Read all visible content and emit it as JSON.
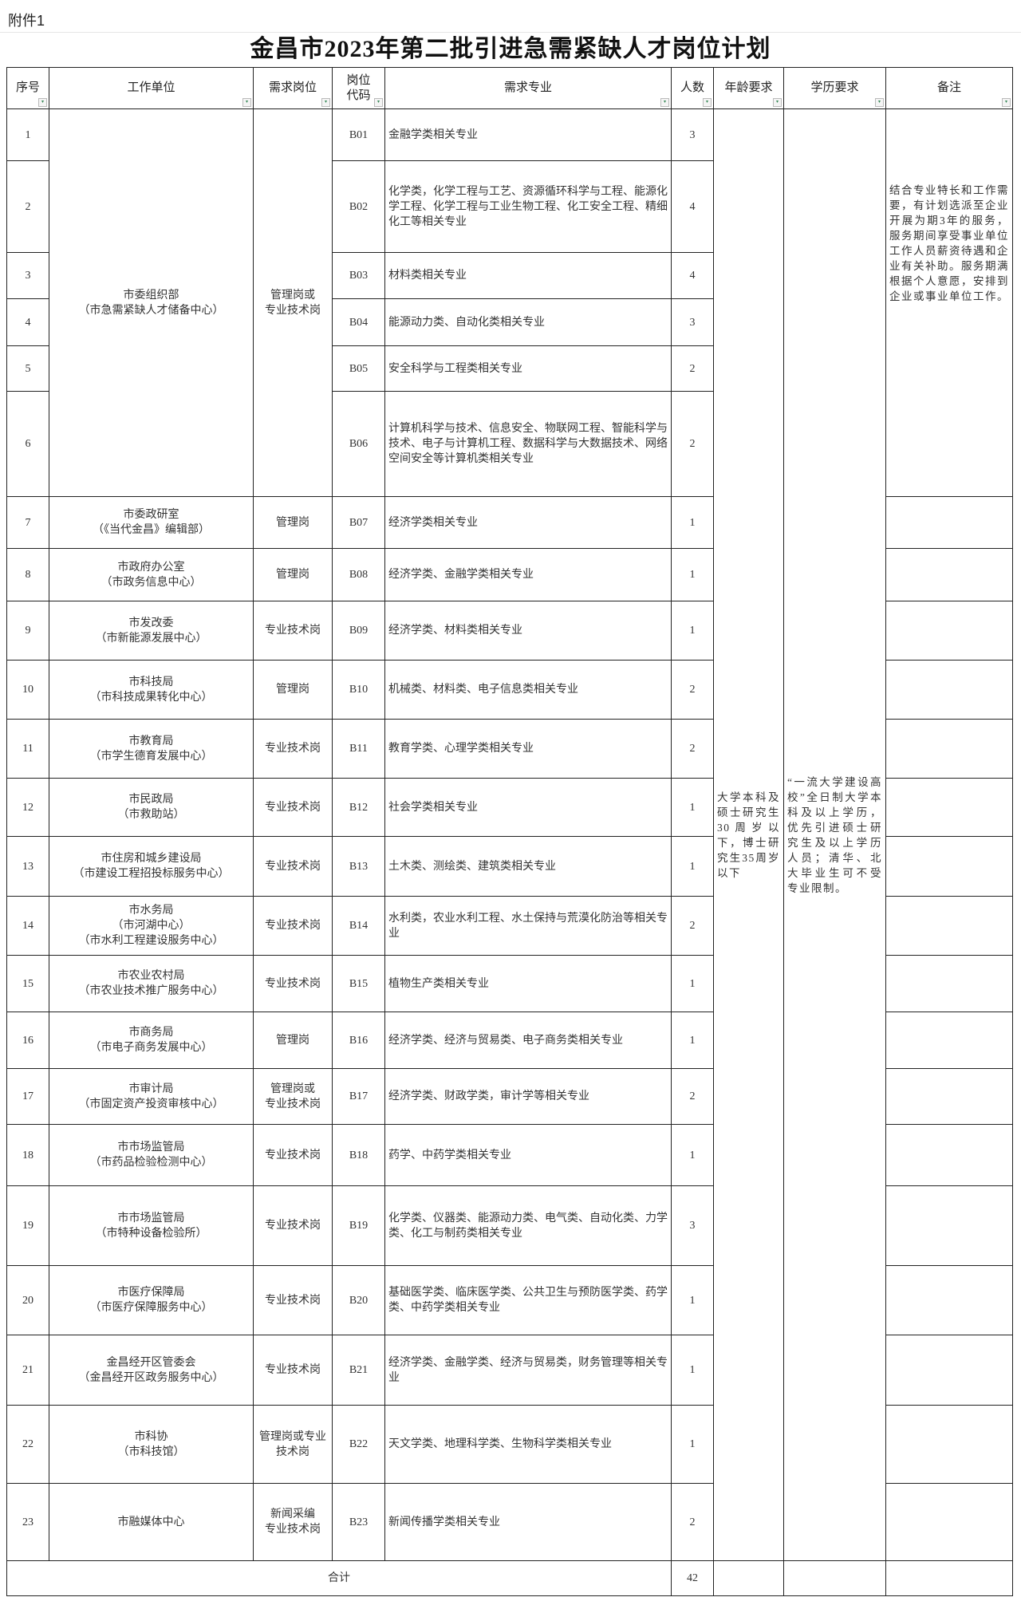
{
  "attachment_label": "附件1",
  "title": "金昌市2023年第二批引进急需紧缺人才岗位计划",
  "headers": [
    "序号",
    "工作单位",
    "需求岗位",
    "岗位\n代码",
    "需求专业",
    "人数",
    "年龄要求",
    "学历要求",
    "备注"
  ],
  "filter_icon": "dropdown-filter-arrow",
  "age_requirement": "大学本科及硕士研究生30周岁以下，博士研究生35周岁以下",
  "education_requirement": "“一流大学建设高校”全日制大学本科及以上学历，优先引进硕士研究生及以上学历人员；清华、北大毕业生可不受专业限制。",
  "remark_group1": "结合专业特长和工作需要，有计划选派至企业开展为期3年的服务，服务期间享受事业单位工作人员薪资待遇和企业有关补助。服务期满根据个人意愿，安排到企业或事业单位工作。",
  "rows": [
    {
      "no": "1",
      "unit": "市委组织部\n（市急需紧缺人才储备中心）",
      "position": "管理岗或\n专业技术岗",
      "code": "B01",
      "major": "金融学类相关专业",
      "count": "3"
    },
    {
      "no": "2",
      "code": "B02",
      "major": "化学类，化学工程与工艺、资源循环科学与工程、能源化学工程、化学工程与工业生物工程、化工安全工程、精细化工等相关专业",
      "count": "4"
    },
    {
      "no": "3",
      "code": "B03",
      "major": "材料类相关专业",
      "count": "4"
    },
    {
      "no": "4",
      "code": "B04",
      "major": "能源动力类、自动化类相关专业",
      "count": "3"
    },
    {
      "no": "5",
      "code": "B05",
      "major": "安全科学与工程类相关专业",
      "count": "2"
    },
    {
      "no": "6",
      "code": "B06",
      "major": "计算机科学与技术、信息安全、物联网工程、智能科学与技术、电子与计算机工程、数据科学与大数据技术、网络空间安全等计算机类相关专业",
      "count": "2"
    },
    {
      "no": "7",
      "unit": "市委政研室\n（《当代金昌》编辑部）",
      "position": "管理岗",
      "code": "B07",
      "major": "经济学类相关专业",
      "count": "1"
    },
    {
      "no": "8",
      "unit": "市政府办公室\n（市政务信息中心）",
      "position": "管理岗",
      "code": "B08",
      "major": "经济学类、金融学类相关专业",
      "count": "1"
    },
    {
      "no": "9",
      "unit": "市发改委\n（市新能源发展中心）",
      "position": "专业技术岗",
      "code": "B09",
      "major": "经济学类、材料类相关专业",
      "count": "1"
    },
    {
      "no": "10",
      "unit": "市科技局\n（市科技成果转化中心）",
      "position": "管理岗",
      "code": "B10",
      "major": "机械类、材料类、电子信息类相关专业",
      "count": "2"
    },
    {
      "no": "11",
      "unit": "市教育局\n（市学生德育发展中心）",
      "position": "专业技术岗",
      "code": "B11",
      "major": "教育学类、心理学类相关专业",
      "count": "2"
    },
    {
      "no": "12",
      "unit": "市民政局\n（市救助站）",
      "position": "专业技术岗",
      "code": "B12",
      "major": "社会学类相关专业",
      "count": "1"
    },
    {
      "no": "13",
      "unit": "市住房和城乡建设局\n（市建设工程招投标服务中心）",
      "position": "专业技术岗",
      "code": "B13",
      "major": "土木类、测绘类、建筑类相关专业",
      "count": "1"
    },
    {
      "no": "14",
      "unit": "市水务局\n（市河湖中心）\n（市水利工程建设服务中心）",
      "position": "专业技术岗",
      "code": "B14",
      "major": "水利类，农业水利工程、水土保持与荒漠化防治等相关专业",
      "count": "2"
    },
    {
      "no": "15",
      "unit": "市农业农村局\n（市农业技术推广服务中心）",
      "position": "专业技术岗",
      "code": "B15",
      "major": "植物生产类相关专业",
      "count": "1"
    },
    {
      "no": "16",
      "unit": "市商务局\n（市电子商务发展中心）",
      "position": "管理岗",
      "code": "B16",
      "major": "经济学类、经济与贸易类、电子商务类相关专业",
      "count": "1"
    },
    {
      "no": "17",
      "unit": "市审计局\n（市固定资产投资审核中心）",
      "position": "管理岗或\n专业技术岗",
      "code": "B17",
      "major": "经济学类、财政学类，审计学等相关专业",
      "count": "2"
    },
    {
      "no": "18",
      "unit": "市市场监管局\n（市药品检验检测中心）",
      "position": "专业技术岗",
      "code": "B18",
      "major": "药学、中药学类相关专业",
      "count": "1"
    },
    {
      "no": "19",
      "unit": "市市场监管局\n（市特种设备检验所）",
      "position": "专业技术岗",
      "code": "B19",
      "major": "化学类、仪器类、能源动力类、电气类、自动化类、力学类、化工与制药类相关专业",
      "count": "3"
    },
    {
      "no": "20",
      "unit": "市医疗保障局\n（市医疗保障服务中心）",
      "position": "专业技术岗",
      "code": "B20",
      "major": "基础医学类、临床医学类、公共卫生与预防医学类、药学类、中药学类相关专业",
      "count": "1"
    },
    {
      "no": "21",
      "unit": "金昌经开区管委会\n（金昌经开区政务服务中心）",
      "position": "专业技术岗",
      "code": "B21",
      "major": "经济学类、金融学类、经济与贸易类，财务管理等相关专业",
      "count": "1"
    },
    {
      "no": "22",
      "unit": "市科协\n（市科技馆）",
      "position": "管理岗或专业技术岗",
      "code": "B22",
      "major": "天文学类、地理科学类、生物科学类相关专业",
      "count": "1"
    },
    {
      "no": "23",
      "unit": "市融媒体中心",
      "position": "新闻采编\n专业技术岗",
      "code": "B23",
      "major": "新闻传播学类相关专业",
      "count": "2"
    }
  ],
  "total": {
    "label": "合计",
    "count": "42"
  }
}
